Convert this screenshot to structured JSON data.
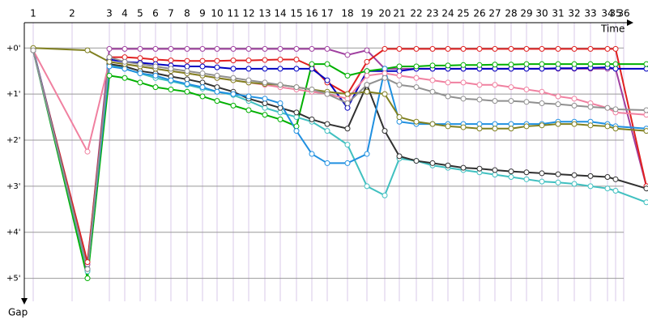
{
  "chart_data": {
    "type": "line",
    "x_label": "Time",
    "y_label": "Gap",
    "xlim": [
      0,
      770
    ],
    "ylim": [
      -0.55,
      5.5
    ],
    "y_inverted": true,
    "grid": true,
    "xticks": [
      {
        "value": 11,
        "label": "1"
      },
      {
        "value": 59,
        "label": "2"
      },
      {
        "value": 105,
        "label": "3"
      },
      {
        "value": 124,
        "label": "4"
      },
      {
        "value": 143,
        "label": "5"
      },
      {
        "value": 162,
        "label": "6"
      },
      {
        "value": 181,
        "label": "7"
      },
      {
        "value": 201,
        "label": "8"
      },
      {
        "value": 220,
        "label": "9"
      },
      {
        "value": 238,
        "label": "10"
      },
      {
        "value": 258,
        "label": "11"
      },
      {
        "value": 277,
        "label": "12"
      },
      {
        "value": 297,
        "label": "13"
      },
      {
        "value": 316,
        "label": "14"
      },
      {
        "value": 336,
        "label": "15"
      },
      {
        "value": 355,
        "label": "16"
      },
      {
        "value": 374,
        "label": "17"
      },
      {
        "value": 399,
        "label": "18"
      },
      {
        "value": 423,
        "label": "19"
      },
      {
        "value": 445,
        "label": "20"
      },
      {
        "value": 463,
        "label": "21"
      },
      {
        "value": 484,
        "label": "22"
      },
      {
        "value": 504,
        "label": "23"
      },
      {
        "value": 523,
        "label": "24"
      },
      {
        "value": 542,
        "label": "25"
      },
      {
        "value": 562,
        "label": "26"
      },
      {
        "value": 581,
        "label": "27"
      },
      {
        "value": 601,
        "label": "28"
      },
      {
        "value": 620,
        "label": "29"
      },
      {
        "value": 639,
        "label": "30"
      },
      {
        "value": 659,
        "label": "31"
      },
      {
        "value": 679,
        "label": "32"
      },
      {
        "value": 699,
        "label": "33"
      },
      {
        "value": 720,
        "label": "34"
      },
      {
        "value": 730,
        "label": "35"
      },
      {
        "value": 740,
        "label": "36"
      }
    ],
    "yticks": [
      {
        "value": 0,
        "label": "+0'"
      },
      {
        "value": 1,
        "label": "+1'"
      },
      {
        "value": 2,
        "label": "+2'"
      },
      {
        "value": 3,
        "label": "+3'"
      },
      {
        "value": 4,
        "label": "+4'"
      },
      {
        "value": 5,
        "label": "+5'"
      }
    ],
    "x": [
      11,
      78,
      105,
      124,
      143,
      162,
      181,
      201,
      220,
      238,
      258,
      277,
      297,
      316,
      336,
      355,
      374,
      399,
      423,
      445,
      463,
      484,
      504,
      523,
      542,
      562,
      581,
      601,
      620,
      639,
      659,
      679,
      699,
      720,
      730,
      768
    ],
    "series": [
      {
        "color": "#a040a0",
        "values": [
          0.03,
          4.7,
          0.02,
          0.02,
          0.02,
          0.02,
          0.02,
          0.02,
          0.02,
          0.02,
          0.02,
          0.02,
          0.02,
          0.02,
          0.02,
          0.02,
          0.02,
          0.15,
          0.05,
          0.45,
          0.45,
          0.45,
          0.45,
          0.45,
          0.45,
          0.45,
          0.45,
          0.45,
          0.45,
          0.45,
          0.45,
          0.45,
          0.45,
          0.45,
          0.45,
          3.0
        ]
      },
      {
        "color": "#e02020",
        "values": [
          0.05,
          4.65,
          0.2,
          0.2,
          0.22,
          0.25,
          0.27,
          0.28,
          0.28,
          0.28,
          0.27,
          0.27,
          0.26,
          0.25,
          0.25,
          0.4,
          0.75,
          1.0,
          0.3,
          0.02,
          0.02,
          0.02,
          0.02,
          0.02,
          0.02,
          0.02,
          0.02,
          0.02,
          0.02,
          0.02,
          0.02,
          0.02,
          0.02,
          0.02,
          0.02,
          3.0
        ]
      },
      {
        "color": "#0000c0",
        "values": [
          0.03,
          4.8,
          0.25,
          0.3,
          0.32,
          0.35,
          0.38,
          0.4,
          0.4,
          0.42,
          0.45,
          0.45,
          0.45,
          0.45,
          0.45,
          0.45,
          0.7,
          1.3,
          0.5,
          0.5,
          0.5,
          0.45,
          0.45,
          0.45,
          0.45,
          0.45,
          0.45,
          0.45,
          0.45,
          0.45,
          0.44,
          0.44,
          0.43,
          0.42,
          0.45,
          0.45
        ]
      },
      {
        "color": "#00b000",
        "values": [
          0.05,
          5.0,
          0.6,
          0.65,
          0.75,
          0.85,
          0.9,
          0.95,
          1.05,
          1.15,
          1.25,
          1.35,
          1.45,
          1.55,
          1.7,
          0.35,
          0.35,
          0.6,
          0.5,
          0.45,
          0.4,
          0.4,
          0.38,
          0.38,
          0.37,
          0.37,
          0.36,
          0.36,
          0.35,
          0.35,
          0.35,
          0.35,
          0.35,
          0.35,
          0.35,
          0.35
        ]
      },
      {
        "color": "#40c0c0",
        "values": [
          0.05,
          4.85,
          0.35,
          0.45,
          0.55,
          0.65,
          0.72,
          0.8,
          0.88,
          0.95,
          1.02,
          1.15,
          1.3,
          1.4,
          1.5,
          1.6,
          1.8,
          2.1,
          3.0,
          3.2,
          2.4,
          2.45,
          2.55,
          2.6,
          2.65,
          2.7,
          2.75,
          2.8,
          2.85,
          2.9,
          2.92,
          2.95,
          3.0,
          3.05,
          3.1,
          3.35
        ]
      },
      {
        "color": "#303030",
        "values": [
          0.05,
          4.8,
          0.35,
          0.4,
          0.5,
          0.55,
          0.62,
          0.68,
          0.75,
          0.85,
          0.95,
          1.1,
          1.2,
          1.3,
          1.4,
          1.55,
          1.65,
          1.75,
          0.8,
          1.8,
          2.35,
          2.45,
          2.5,
          2.55,
          2.6,
          2.62,
          2.65,
          2.68,
          2.7,
          2.72,
          2.74,
          2.76,
          2.78,
          2.8,
          2.85,
          3.05
        ]
      },
      {
        "color": "#2090e0",
        "values": [
          0.05,
          4.8,
          0.4,
          0.45,
          0.55,
          0.6,
          0.7,
          0.78,
          0.85,
          0.95,
          1.0,
          1.05,
          1.1,
          1.2,
          1.8,
          2.3,
          2.5,
          2.5,
          2.3,
          0.45,
          1.6,
          1.65,
          1.65,
          1.65,
          1.65,
          1.65,
          1.65,
          1.65,
          1.65,
          1.65,
          1.6,
          1.6,
          1.6,
          1.65,
          1.7,
          1.75
        ]
      },
      {
        "color": "#f080a0",
        "values": [
          0.05,
          2.25,
          0.3,
          0.35,
          0.4,
          0.45,
          0.5,
          0.55,
          0.6,
          0.65,
          0.7,
          0.75,
          0.8,
          0.85,
          0.9,
          0.95,
          1.0,
          1.1,
          0.6,
          0.55,
          0.6,
          0.65,
          0.7,
          0.75,
          0.75,
          0.8,
          0.8,
          0.85,
          0.9,
          0.95,
          1.05,
          1.1,
          1.2,
          1.3,
          1.4,
          1.45
        ]
      },
      {
        "color": "#808020",
        "values": [
          0.0,
          0.05,
          0.3,
          0.35,
          0.4,
          0.45,
          0.5,
          0.55,
          0.6,
          0.65,
          0.7,
          0.75,
          0.78,
          0.8,
          0.85,
          0.9,
          0.95,
          1.0,
          0.95,
          1.0,
          1.5,
          1.6,
          1.65,
          1.7,
          1.72,
          1.75,
          1.75,
          1.75,
          1.7,
          1.68,
          1.65,
          1.65,
          1.68,
          1.7,
          1.75,
          1.8
        ]
      },
      {
        "color": "#909090",
        "values": [
          0.05,
          4.8,
          0.2,
          0.3,
          0.35,
          0.4,
          0.45,
          0.5,
          0.55,
          0.6,
          0.65,
          0.7,
          0.75,
          0.8,
          0.85,
          0.9,
          1.0,
          1.2,
          0.8,
          0.65,
          0.8,
          0.85,
          0.95,
          1.05,
          1.1,
          1.12,
          1.15,
          1.15,
          1.17,
          1.2,
          1.22,
          1.25,
          1.28,
          1.3,
          1.33,
          1.35
        ]
      }
    ]
  }
}
